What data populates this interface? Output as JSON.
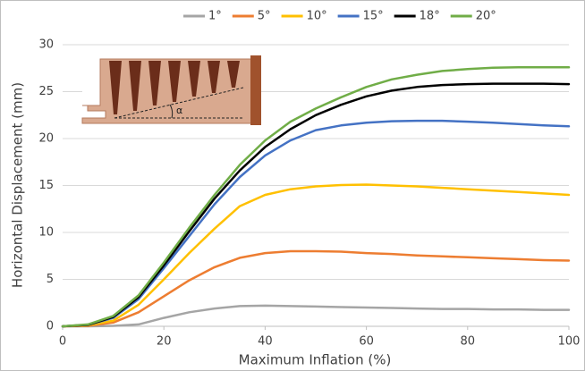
{
  "chart_data": {
    "type": "line",
    "x_label": "Maximum Inflation (%)",
    "y_label": "Horizontal Displacement (mm)",
    "annotation": "α",
    "x": [
      0,
      5,
      10,
      15,
      20,
      25,
      30,
      35,
      40,
      45,
      50,
      55,
      60,
      65,
      70,
      75,
      80,
      85,
      90,
      95,
      100
    ],
    "series": [
      {
        "name": "1°",
        "color": "#a5a5a5",
        "values": [
          0,
          0,
          0.05,
          0.2,
          0.9,
          1.5,
          1.9,
          2.15,
          2.2,
          2.15,
          2.1,
          2.05,
          2.0,
          1.95,
          1.9,
          1.85,
          1.85,
          1.8,
          1.8,
          1.75,
          1.75
        ]
      },
      {
        "name": "5°",
        "color": "#ed7d31",
        "values": [
          0,
          0.05,
          0.4,
          1.5,
          3.2,
          4.9,
          6.3,
          7.3,
          7.8,
          8.0,
          8.0,
          7.95,
          7.8,
          7.7,
          7.55,
          7.45,
          7.35,
          7.25,
          7.15,
          7.05,
          7.0
        ]
      },
      {
        "name": "10°",
        "color": "#ffc000",
        "values": [
          0,
          0.1,
          0.6,
          2.3,
          5.0,
          7.8,
          10.4,
          12.8,
          14.0,
          14.6,
          14.9,
          15.05,
          15.1,
          15.0,
          14.9,
          14.75,
          14.6,
          14.45,
          14.3,
          14.15,
          14.0
        ]
      },
      {
        "name": "15°",
        "color": "#4472c4",
        "values": [
          0,
          0.15,
          0.9,
          2.9,
          6.2,
          9.6,
          13.0,
          15.9,
          18.2,
          19.8,
          20.9,
          21.4,
          21.7,
          21.85,
          21.9,
          21.9,
          21.8,
          21.7,
          21.55,
          21.4,
          21.3
        ]
      },
      {
        "name": "18°",
        "color": "#000000",
        "values": [
          0,
          0.15,
          1.0,
          3.1,
          6.5,
          10.1,
          13.6,
          16.6,
          19.1,
          21.0,
          22.5,
          23.6,
          24.5,
          25.1,
          25.5,
          25.7,
          25.8,
          25.85,
          25.85,
          25.85,
          25.8
        ]
      },
      {
        "name": "20°",
        "color": "#70ad47",
        "values": [
          0,
          0.2,
          1.1,
          3.3,
          6.8,
          10.5,
          14.0,
          17.2,
          19.8,
          21.8,
          23.2,
          24.4,
          25.5,
          26.3,
          26.8,
          27.2,
          27.4,
          27.55,
          27.6,
          27.6,
          27.6
        ]
      }
    ],
    "xlim": [
      0,
      100
    ],
    "xticks": [
      0,
      20,
      40,
      60,
      80,
      100
    ],
    "ylim": [
      0,
      30
    ],
    "yticks": [
      0,
      5,
      10,
      15,
      20,
      25,
      30
    ],
    "grid": true,
    "legend": "top"
  }
}
